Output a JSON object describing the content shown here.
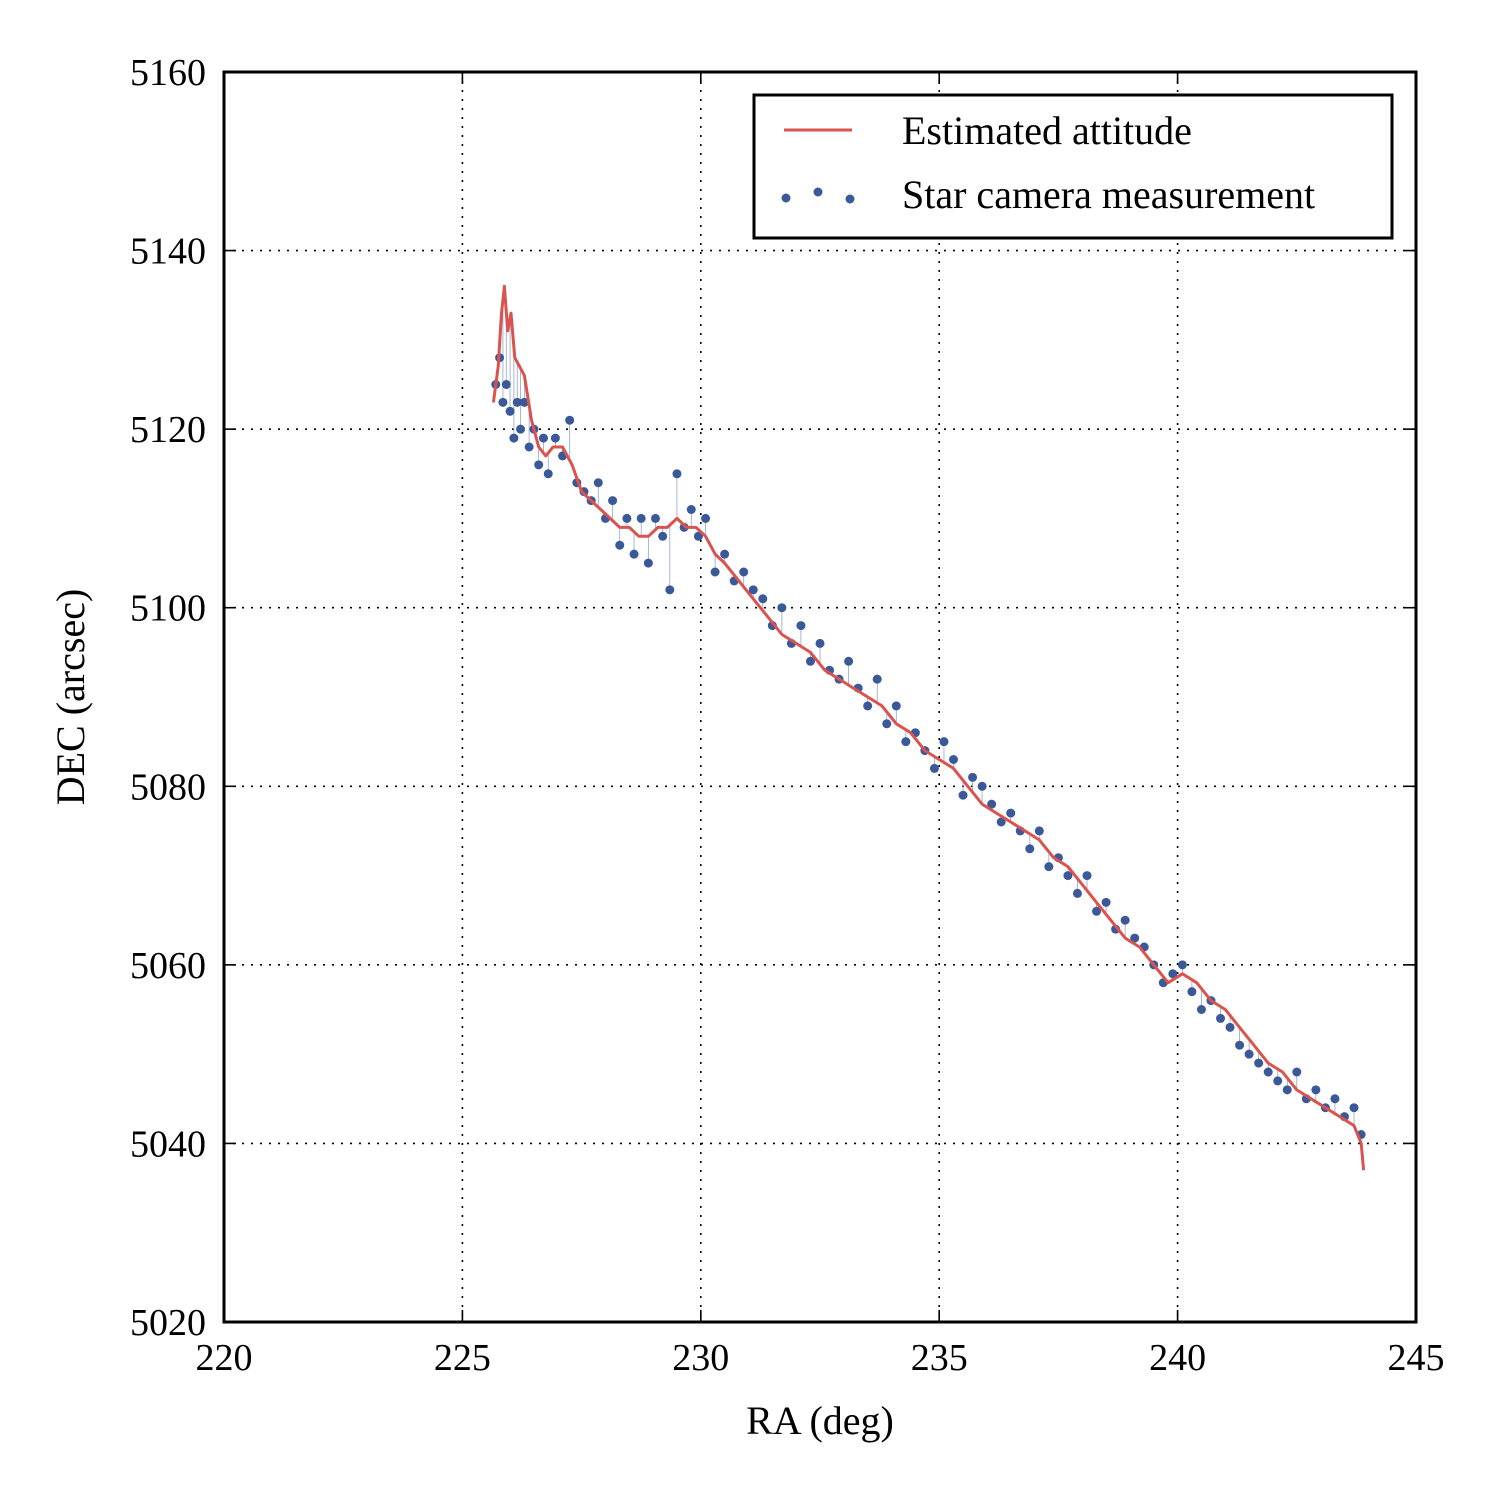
{
  "chart_data": {
    "type": "line",
    "title": "",
    "xlabel": "RA (deg)",
    "ylabel": "DEC (arcsec)",
    "xlim": [
      220,
      245
    ],
    "ylim": [
      5020,
      5160
    ],
    "xticks": [
      220,
      225,
      230,
      235,
      240,
      245
    ],
    "yticks": [
      5020,
      5040,
      5060,
      5080,
      5100,
      5120,
      5140,
      5160
    ],
    "grid": true,
    "legend_position": "top-right",
    "series": [
      {
        "name": "Estimated attitude",
        "kind": "line",
        "color": "#d9534f",
        "x": [
          225.65,
          225.75,
          225.82,
          225.88,
          225.95,
          226.02,
          226.1,
          226.2,
          226.3,
          226.45,
          226.6,
          226.75,
          226.9,
          227.1,
          227.3,
          227.5,
          227.7,
          227.9,
          228.1,
          228.3,
          228.5,
          228.7,
          228.9,
          229.1,
          229.3,
          229.5,
          229.7,
          229.9,
          230.1,
          230.3,
          230.5,
          230.8,
          231.1,
          231.4,
          231.7,
          232.0,
          232.3,
          232.6,
          232.9,
          233.2,
          233.5,
          233.8,
          234.1,
          234.4,
          234.7,
          235.0,
          235.3,
          235.6,
          235.9,
          236.2,
          236.5,
          236.8,
          237.1,
          237.4,
          237.7,
          238.0,
          238.3,
          238.6,
          238.9,
          239.2,
          239.5,
          239.8,
          240.1,
          240.4,
          240.7,
          241.0,
          241.3,
          241.6,
          241.9,
          242.2,
          242.5,
          242.8,
          243.1,
          243.4,
          243.7,
          243.85,
          243.9
        ],
        "y": [
          5123,
          5127,
          5133,
          5136,
          5131,
          5133,
          5128,
          5127,
          5126,
          5121,
          5118,
          5117,
          5118,
          5118,
          5116,
          5113,
          5112,
          5111,
          5110,
          5109,
          5109,
          5108,
          5108,
          5109,
          5109,
          5110,
          5109,
          5109,
          5108,
          5106,
          5105,
          5103,
          5101,
          5099,
          5097,
          5096,
          5095,
          5093,
          5092,
          5091,
          5090,
          5089,
          5087,
          5086,
          5084,
          5083,
          5082,
          5080,
          5078,
          5077,
          5076,
          5075,
          5074,
          5072,
          5071,
          5069,
          5067,
          5065,
          5063,
          5062,
          5060,
          5058,
          5059,
          5058,
          5056,
          5055,
          5053,
          5051,
          5049,
          5048,
          5046,
          5045,
          5044,
          5043,
          5042,
          5040,
          5037
        ]
      },
      {
        "name": "Star camera measurement",
        "kind": "scatter",
        "color": "#3b5998",
        "x": [
          225.7,
          225.78,
          225.85,
          225.92,
          226.0,
          226.08,
          226.15,
          226.22,
          226.3,
          226.4,
          226.5,
          226.6,
          226.7,
          226.8,
          226.95,
          227.1,
          227.25,
          227.4,
          227.55,
          227.7,
          227.85,
          228.0,
          228.15,
          228.3,
          228.45,
          228.6,
          228.75,
          228.9,
          229.05,
          229.2,
          229.35,
          229.5,
          229.65,
          229.8,
          229.95,
          230.1,
          230.3,
          230.5,
          230.7,
          230.9,
          231.1,
          231.3,
          231.5,
          231.7,
          231.9,
          232.1,
          232.3,
          232.5,
          232.7,
          232.9,
          233.1,
          233.3,
          233.5,
          233.7,
          233.9,
          234.1,
          234.3,
          234.5,
          234.7,
          234.9,
          235.1,
          235.3,
          235.5,
          235.7,
          235.9,
          236.1,
          236.3,
          236.5,
          236.7,
          236.9,
          237.1,
          237.3,
          237.5,
          237.7,
          237.9,
          238.1,
          238.3,
          238.5,
          238.7,
          238.9,
          239.1,
          239.3,
          239.5,
          239.7,
          239.9,
          240.1,
          240.3,
          240.5,
          240.7,
          240.9,
          241.1,
          241.3,
          241.5,
          241.7,
          241.9,
          242.1,
          242.3,
          242.5,
          242.7,
          242.9,
          243.1,
          243.3,
          243.5,
          243.7,
          243.85
        ],
        "y": [
          5125,
          5128,
          5123,
          5125,
          5122,
          5119,
          5123,
          5120,
          5123,
          5118,
          5120,
          5116,
          5119,
          5115,
          5119,
          5117,
          5121,
          5114,
          5113,
          5112,
          5114,
          5110,
          5112,
          5107,
          5110,
          5106,
          5110,
          5105,
          5110,
          5108,
          5102,
          5115,
          5109,
          5111,
          5108,
          5110,
          5104,
          5106,
          5103,
          5104,
          5102,
          5101,
          5098,
          5100,
          5096,
          5098,
          5094,
          5096,
          5093,
          5092,
          5094,
          5091,
          5089,
          5092,
          5087,
          5089,
          5085,
          5086,
          5084,
          5082,
          5085,
          5083,
          5079,
          5081,
          5080,
          5078,
          5076,
          5077,
          5075,
          5073,
          5075,
          5071,
          5072,
          5070,
          5068,
          5070,
          5066,
          5067,
          5064,
          5065,
          5063,
          5062,
          5060,
          5058,
          5059,
          5060,
          5057,
          5055,
          5056,
          5054,
          5053,
          5051,
          5050,
          5049,
          5048,
          5047,
          5046,
          5048,
          5045,
          5046,
          5044,
          5045,
          5043,
          5044,
          5041
        ]
      }
    ]
  }
}
